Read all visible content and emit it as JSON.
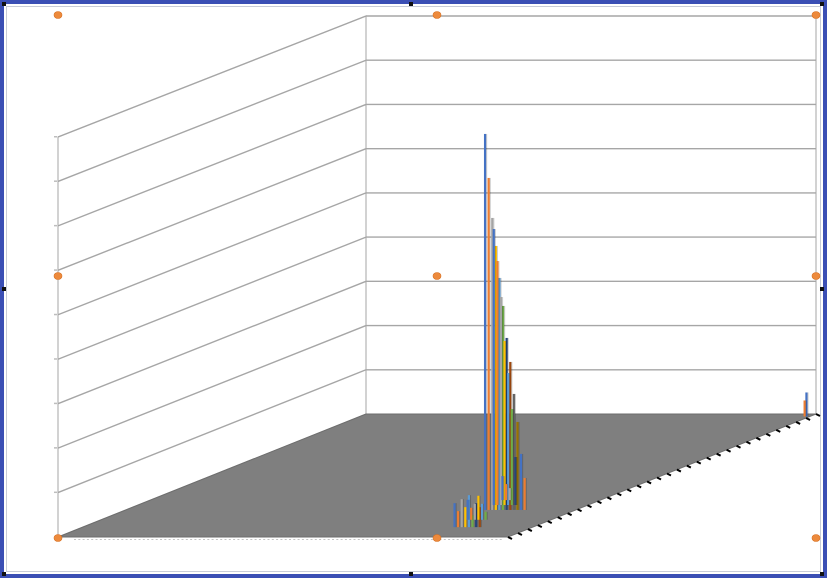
{
  "colors": {
    "frame": "#3b4fb5",
    "floor": "#7f7f7f",
    "grid": "#a6a6a6",
    "handle": "#ed8a3c",
    "series": [
      "#4472c4",
      "#ed7d31",
      "#a5a5a5",
      "#ffc000",
      "#5b9bd5",
      "#70ad47",
      "#264478",
      "#9e480e",
      "#636363",
      "#997300"
    ]
  },
  "chart_data": {
    "type": "bar",
    "view": "3d-column",
    "grid": true,
    "ylim": [
      0,
      1
    ],
    "ytick_count": 9,
    "clusters": [
      {
        "position": 0.08,
        "values": [
          0.06,
          0.04,
          0.07,
          0.05,
          0.08,
          0.03,
          0.06,
          0.05
        ]
      },
      {
        "position": 0.14,
        "values": [
          0.05,
          0.03,
          0.04,
          0.06,
          0.04,
          0.02
        ]
      },
      {
        "position": 0.22,
        "values": [
          0.94,
          0.83,
          0.73,
          0.66,
          0.58,
          0.51,
          0.43,
          0.37,
          0.29,
          0.22,
          0.14,
          0.08
        ]
      },
      {
        "position": 0.26,
        "values": [
          0.69,
          0.61,
          0.52,
          0.41,
          0.33,
          0.24,
          0.12
        ]
      },
      {
        "position": 0.3,
        "values": [
          0.06,
          0.04,
          0.03
        ]
      },
      {
        "position": 0.98,
        "values": [
          0.06,
          0.04
        ]
      }
    ]
  }
}
